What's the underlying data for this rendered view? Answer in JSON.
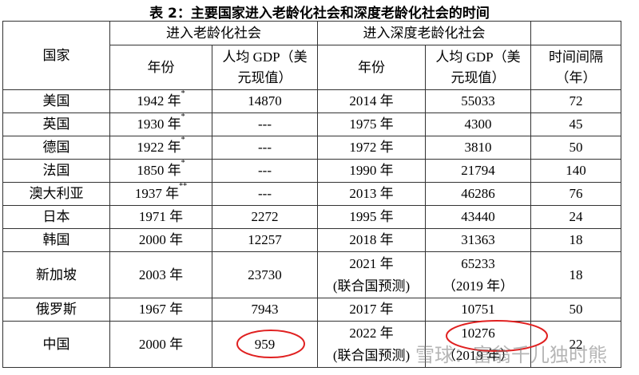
{
  "title": "表 2：主要国家进入老龄化社会和深度老龄化社会的时间",
  "table": {
    "group_headers": [
      "国家",
      "进入老龄化社会",
      "进入深度老龄化社会"
    ],
    "headers": [
      "年份",
      "人均 GDP（美元现值）",
      "年份",
      "人均 GDP（美元现值）",
      "时间间隔（年）"
    ],
    "rows": [
      [
        "美国",
        {
          "text": "1942 年",
          "sup": "*"
        },
        14870,
        "2014 年",
        55033,
        72
      ],
      [
        "英国",
        {
          "text": "1930 年",
          "sup": "*"
        },
        "---",
        "1975 年",
        4300,
        45
      ],
      [
        "德国",
        {
          "text": "1922 年",
          "sup": "*"
        },
        "---",
        "1972 年",
        3810,
        50
      ],
      [
        "法国",
        {
          "text": "1850 年",
          "sup": "*"
        },
        "---",
        "1990 年",
        21794,
        140
      ],
      [
        "澳大利亚",
        {
          "text": "1937 年",
          "sup": "**"
        },
        "---",
        "2013 年",
        46286,
        76
      ],
      [
        "日本",
        "1971 年",
        2272,
        "1995 年",
        43440,
        24
      ],
      [
        "韩国",
        "2000 年",
        12257,
        "2018 年",
        31363,
        18
      ],
      [
        "新加坡",
        "2003 年",
        23730,
        {
          "lines": [
            "2021 年",
            "(联合国预测)"
          ]
        },
        {
          "lines": [
            "65233",
            "（2019 年）"
          ]
        },
        18
      ],
      [
        "俄罗斯",
        "1967 年",
        7943,
        "2017 年",
        10751,
        50
      ],
      [
        "中国",
        "2000 年",
        959,
        {
          "lines": [
            "2022 年",
            "(联合国预测)"
          ]
        },
        {
          "lines": [
            "10276",
            "（2019 年）"
          ]
        },
        22
      ]
    ]
  },
  "watermark": "雪球：富翁千儿独时熊"
}
